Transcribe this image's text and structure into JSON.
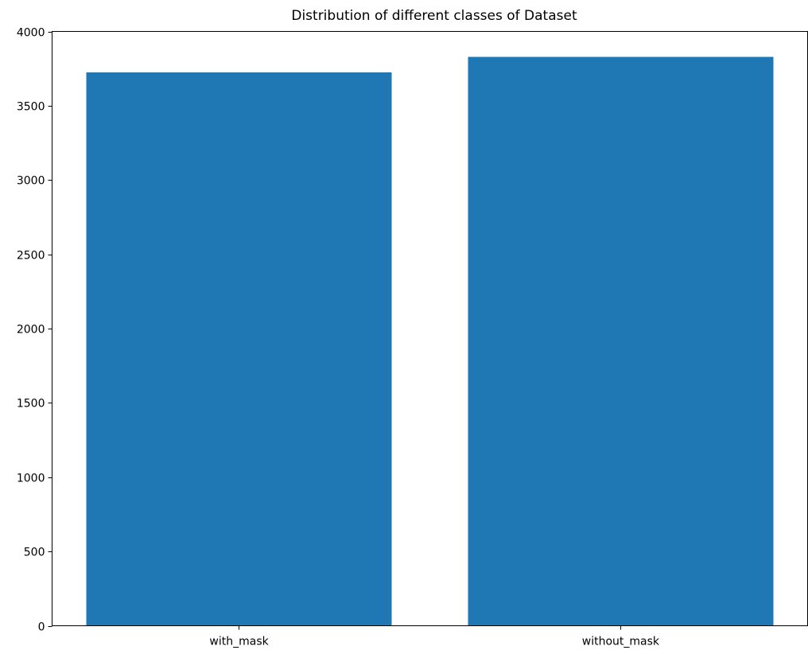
{
  "chart_data": {
    "type": "bar",
    "title": "Distribution of different classes of Dataset",
    "xlabel": "",
    "ylabel": "",
    "categories": [
      "with_mask",
      "without_mask"
    ],
    "values": [
      3725,
      3828
    ],
    "ylim": [
      0,
      4000
    ],
    "yticks": [
      0,
      500,
      1000,
      1500,
      2000,
      2500,
      3000,
      3500,
      4000
    ],
    "grid": false,
    "legend": "none",
    "bar_color": "#1f77b4"
  }
}
